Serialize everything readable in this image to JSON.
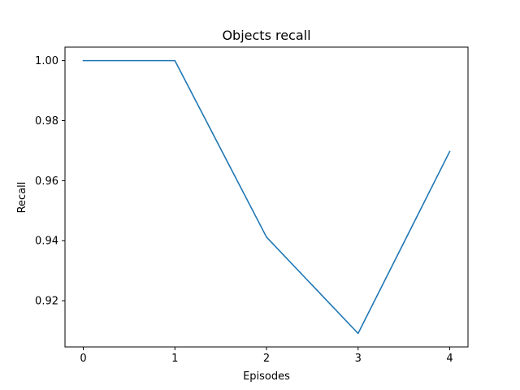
{
  "chart_data": {
    "type": "line",
    "title": "Objects recall",
    "xlabel": "Episodes",
    "ylabel": "Recall",
    "x": [
      0,
      1,
      2,
      3,
      4
    ],
    "series": [
      {
        "values": [
          1.0,
          1.0,
          0.9412,
          0.9091,
          0.9697
        ],
        "color": "#1f77b4"
      }
    ],
    "xticks": [
      "0",
      "1",
      "2",
      "3",
      "4"
    ],
    "yticks": [
      "0.92",
      "0.94",
      "0.96",
      "0.98",
      "1.00"
    ],
    "ytick_values": [
      0.92,
      0.94,
      0.96,
      0.98,
      1.0
    ],
    "xlim": [
      -0.2,
      4.2
    ],
    "ylim": [
      0.9046,
      1.0045
    ],
    "grid": false,
    "legend": false
  }
}
